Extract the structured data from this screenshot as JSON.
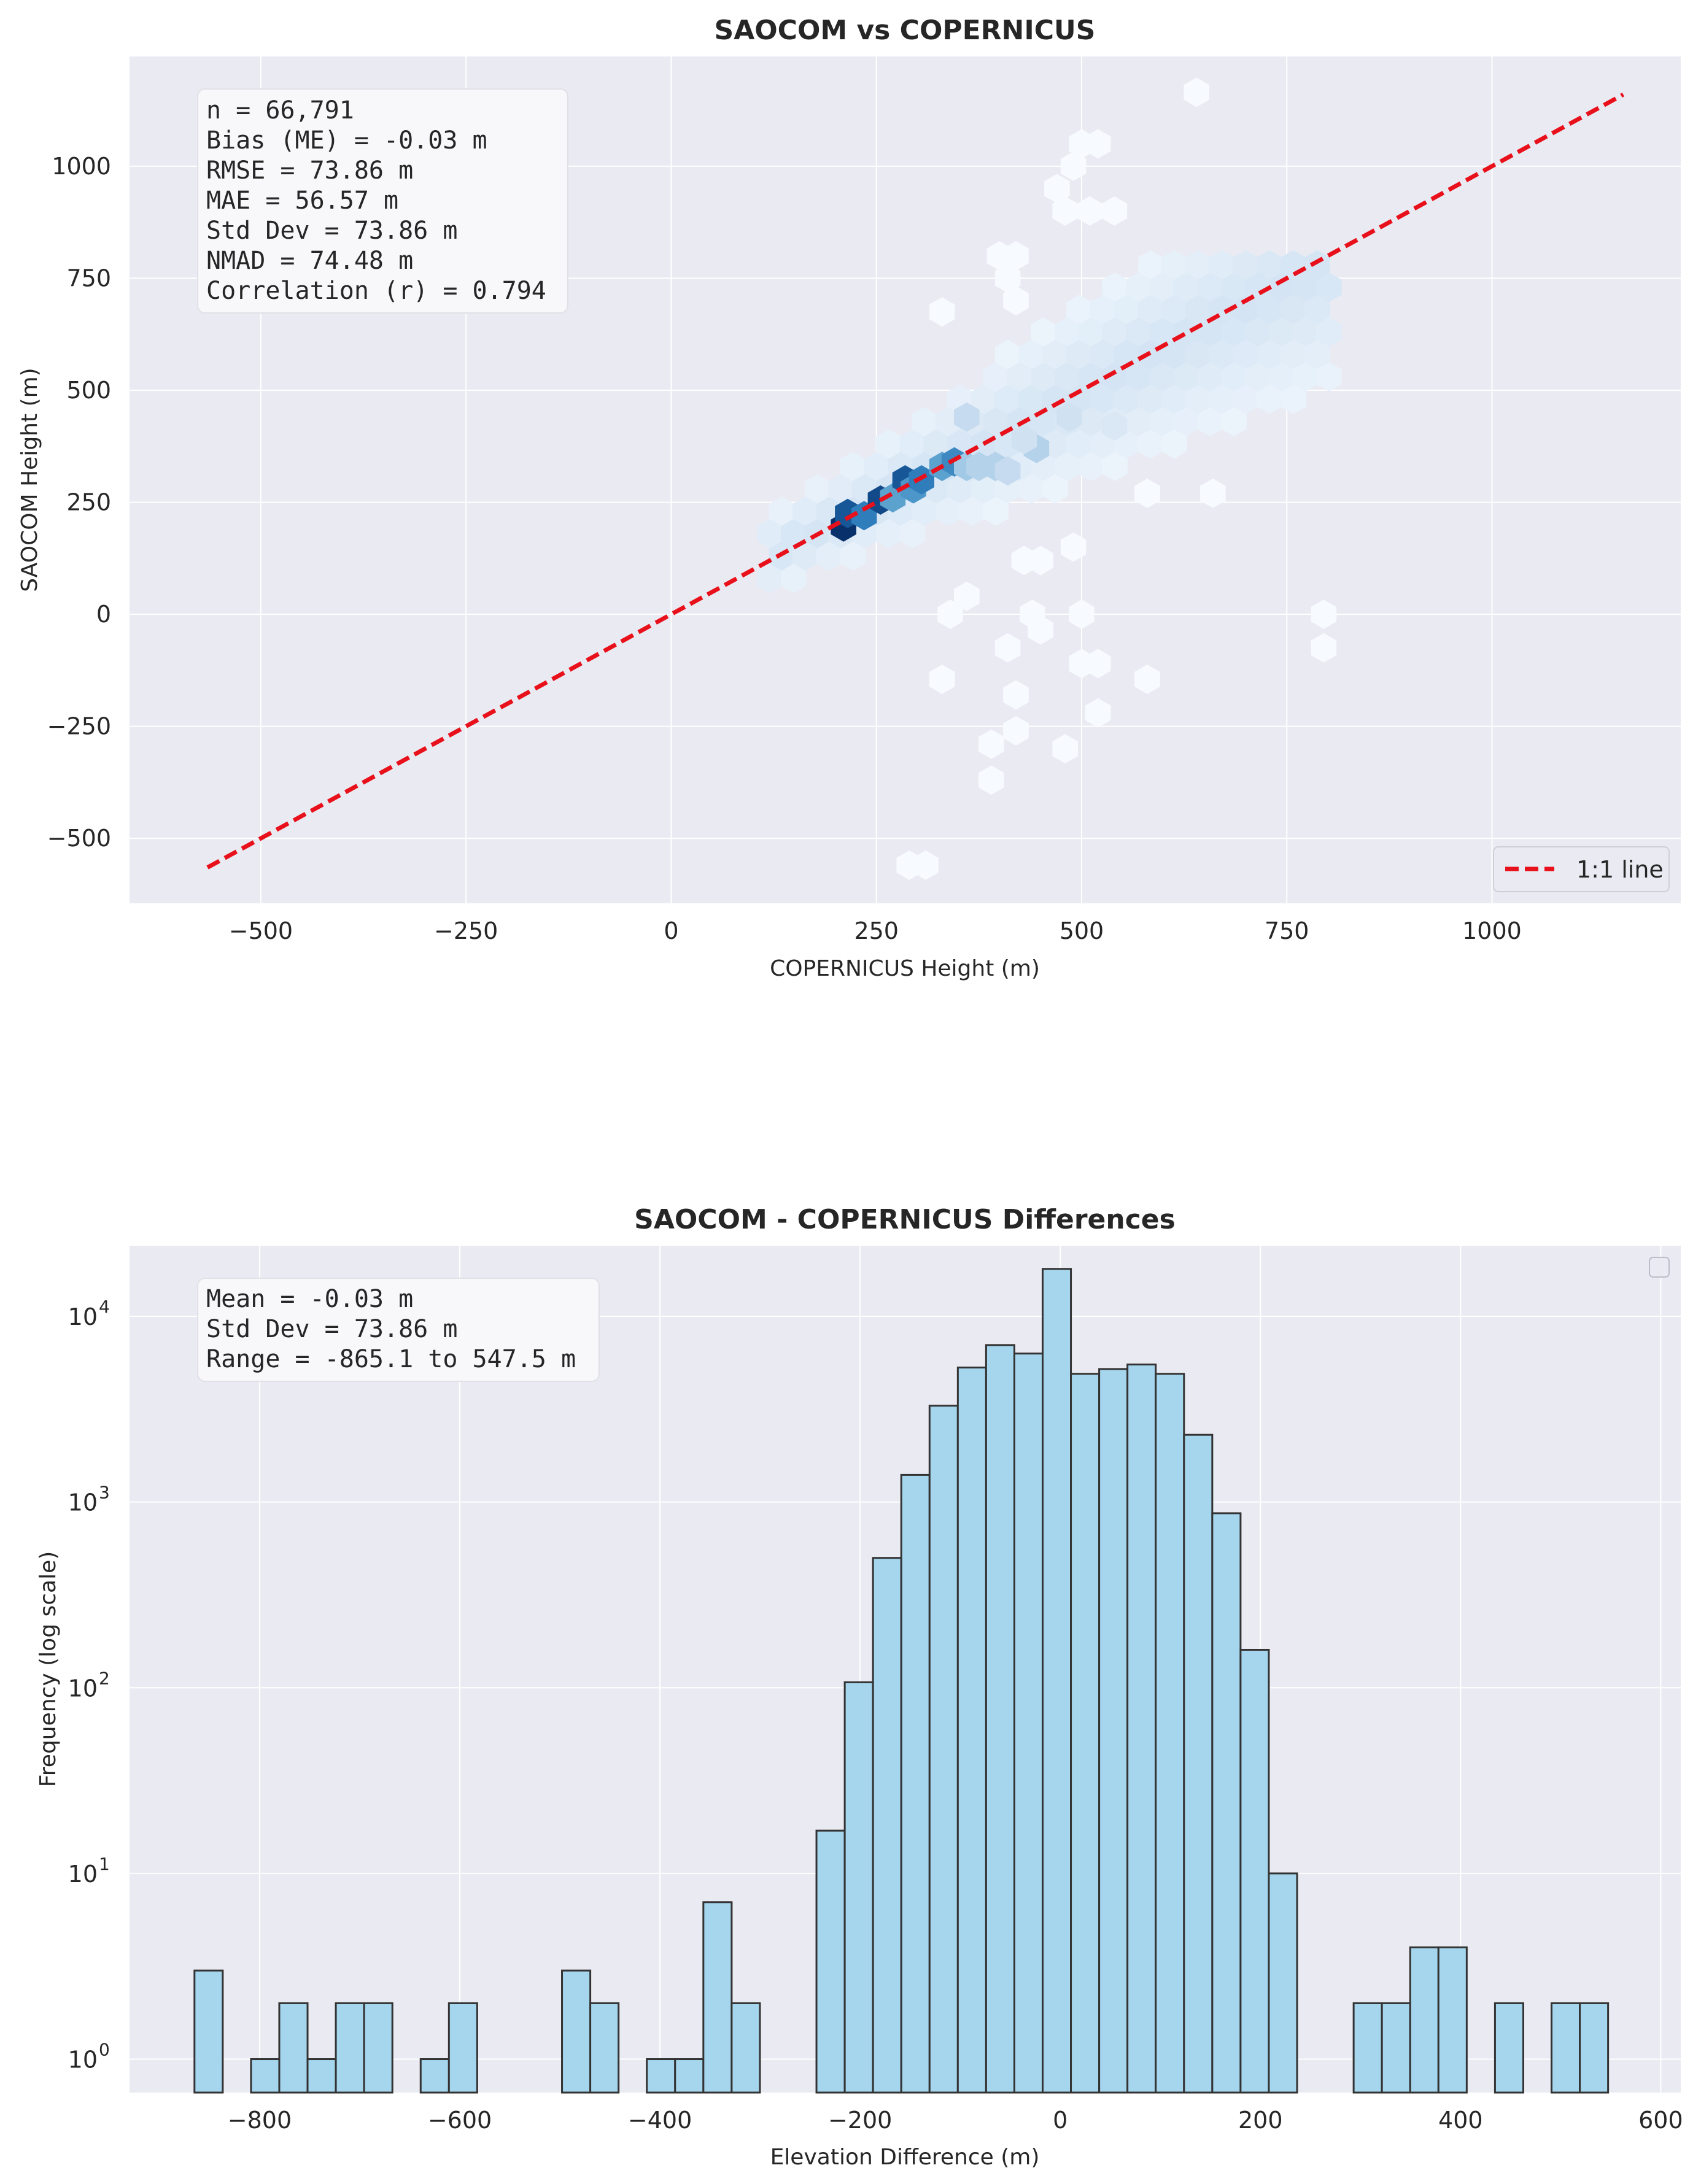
{
  "chart_data": [
    {
      "type": "scatter",
      "subtype": "hexbin",
      "title": "SAOCOM vs COPERNICUS",
      "xlabel": "COPERNICUS Height (m)",
      "ylabel": "SAOCOM Height (m)",
      "xlim": [
        -660,
        1230
      ],
      "ylim": [
        -645,
        1245
      ],
      "xticks": [
        -500,
        -250,
        0,
        250,
        500,
        750,
        1000
      ],
      "yticks": [
        -500,
        -250,
        0,
        250,
        500,
        750,
        1000
      ],
      "grid": true,
      "colormap": "Blues",
      "density_points": [
        {
          "x": 210,
          "y": 195,
          "d": 1.0
        },
        {
          "x": 215,
          "y": 225,
          "d": 0.85
        },
        {
          "x": 235,
          "y": 220,
          "d": 0.7
        },
        {
          "x": 255,
          "y": 255,
          "d": 0.9
        },
        {
          "x": 270,
          "y": 260,
          "d": 0.55
        },
        {
          "x": 285,
          "y": 300,
          "d": 0.85
        },
        {
          "x": 295,
          "y": 280,
          "d": 0.6
        },
        {
          "x": 305,
          "y": 300,
          "d": 0.7
        },
        {
          "x": 330,
          "y": 330,
          "d": 0.55
        },
        {
          "x": 345,
          "y": 340,
          "d": 0.65
        },
        {
          "x": 360,
          "y": 330,
          "d": 0.35
        },
        {
          "x": 375,
          "y": 330,
          "d": 0.3
        },
        {
          "x": 395,
          "y": 330,
          "d": 0.3
        },
        {
          "x": 410,
          "y": 320,
          "d": 0.25
        },
        {
          "x": 445,
          "y": 370,
          "d": 0.3
        },
        {
          "x": 430,
          "y": 390,
          "d": 0.2
        },
        {
          "x": 360,
          "y": 440,
          "d": 0.25
        },
        {
          "x": 485,
          "y": 440,
          "d": 0.2
        },
        {
          "x": 540,
          "y": 420,
          "d": 0.15
        }
      ],
      "sparse_points": [
        {
          "x": 640,
          "y": 1165
        },
        {
          "x": 500,
          "y": 1050
        },
        {
          "x": 520,
          "y": 1050
        },
        {
          "x": 490,
          "y": 1000
        },
        {
          "x": 470,
          "y": 950
        },
        {
          "x": 480,
          "y": 900
        },
        {
          "x": 510,
          "y": 900
        },
        {
          "x": 540,
          "y": 900
        },
        {
          "x": 400,
          "y": 800
        },
        {
          "x": 420,
          "y": 800
        },
        {
          "x": 410,
          "y": 750
        },
        {
          "x": 330,
          "y": 675
        },
        {
          "x": 420,
          "y": 700
        },
        {
          "x": 580,
          "y": 270
        },
        {
          "x": 660,
          "y": 270
        },
        {
          "x": 430,
          "y": 120
        },
        {
          "x": 450,
          "y": 120
        },
        {
          "x": 490,
          "y": 150
        },
        {
          "x": 360,
          "y": 40
        },
        {
          "x": 340,
          "y": 0
        },
        {
          "x": 440,
          "y": 0
        },
        {
          "x": 500,
          "y": 0
        },
        {
          "x": 450,
          "y": -35
        },
        {
          "x": 410,
          "y": -75
        },
        {
          "x": 330,
          "y": -145
        },
        {
          "x": 420,
          "y": -180
        },
        {
          "x": 500,
          "y": -110
        },
        {
          "x": 520,
          "y": -110
        },
        {
          "x": 580,
          "y": -145
        },
        {
          "x": 520,
          "y": -220
        },
        {
          "x": 420,
          "y": -260
        },
        {
          "x": 390,
          "y": -290
        },
        {
          "x": 480,
          "y": -300
        },
        {
          "x": 390,
          "y": -370
        },
        {
          "x": 290,
          "y": -560
        },
        {
          "x": 310,
          "y": -560
        },
        {
          "x": 795,
          "y": 0
        },
        {
          "x": 795,
          "y": -75
        }
      ],
      "reference_line": {
        "name": "1:1 line",
        "x": [
          -565,
          1160
        ],
        "y": [
          -565,
          1160
        ],
        "color": "#e8101a",
        "style": "dashed"
      },
      "stats_text": [
        "n = 66,791",
        "Bias (ME) = -0.03 m",
        "RMSE = 73.86 m",
        "MAE = 56.57 m",
        "Std Dev = 73.86 m",
        "NMAD = 74.48 m",
        "Correlation (r) = 0.794"
      ],
      "legend": {
        "placement": "lower-right",
        "entries": [
          "1:1 line"
        ]
      }
    },
    {
      "type": "bar",
      "subtype": "histogram",
      "title": "SAOCOM - COPERNICUS Differences",
      "xlabel": "Elevation Difference (m)",
      "ylabel": "Frequency (log scale)",
      "yscale": "log",
      "xlim": [
        -930,
        620
      ],
      "ylim_log10": [
        -0.18,
        4.38
      ],
      "xticks": [
        -800,
        -600,
        -400,
        -200,
        0,
        200,
        400,
        600
      ],
      "yticks_exp": [
        "0",
        "1",
        "2",
        "3",
        "4"
      ],
      "ytick_base": "10",
      "grid": true,
      "bar_color": "#a6d6ee",
      "edge_color": "#333333",
      "bin_width": 28.25,
      "bins_start": [
        -865.1,
        -808.6,
        -780.35,
        -752.1,
        -723.85,
        -695.6,
        -639.1,
        -610.85,
        -497.85,
        -469.6,
        -413.1,
        -384.85,
        -356.6,
        -328.35,
        -243.6,
        -215.35,
        -187.1,
        -158.85,
        -130.6,
        -102.35,
        -74.1,
        -45.85,
        -17.6,
        10.65,
        38.9,
        67.15,
        95.4,
        123.65,
        151.9,
        180.15,
        208.4,
        293.15,
        321.4,
        349.65,
        377.9,
        434.4,
        490.9,
        519.15
      ],
      "counts": [
        3,
        1,
        2,
        1,
        2,
        2,
        1,
        2,
        3,
        2,
        1,
        1,
        7,
        2,
        17,
        107,
        500,
        1400,
        3300,
        5300,
        7000,
        6300,
        18000,
        4900,
        5200,
        5500,
        4900,
        2300,
        870,
        160,
        10,
        2,
        2,
        4,
        4,
        2,
        2,
        2
      ],
      "stats_text": [
        "Mean = -0.03 m",
        "Std Dev = 73.86 m",
        "Range = -865.1 to 547.5 m"
      ],
      "legend": {
        "placement": "top-right",
        "entries": []
      }
    }
  ]
}
